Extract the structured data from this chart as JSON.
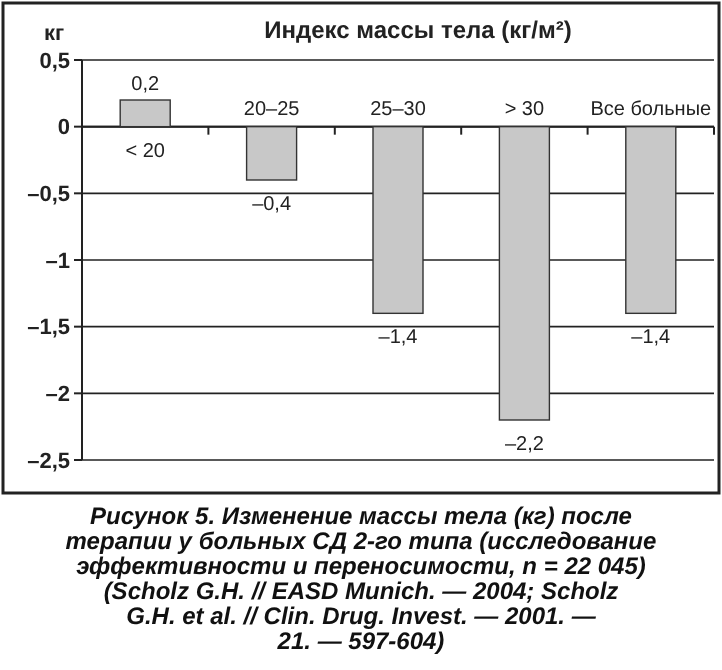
{
  "chart_data": {
    "type": "bar",
    "title": "Индекс массы тела (кг/м²)",
    "ylabel": "кг",
    "categories": [
      "< 20",
      "20–25",
      "25–30",
      "> 30",
      "Все больные"
    ],
    "values": [
      0.2,
      -0.4,
      -1.4,
      -2.2,
      -1.4
    ],
    "value_labels": [
      "0,2",
      "–0,4",
      "–1,4",
      "–2,2",
      "–1,4"
    ],
    "color": "#c8c8c8",
    "ylim": [
      -2.5,
      0.5
    ],
    "yticks": [
      {
        "value": 0.5,
        "label": "0,5"
      },
      0,
      {
        "value": -0.5,
        "label": "–0,5"
      },
      {
        "value": -1,
        "label": "–1"
      },
      {
        "value": -1.5,
        "label": "–1,5"
      },
      {
        "value": -2,
        "label": "–2"
      },
      {
        "value": -2.5,
        "label": "–2,5"
      }
    ],
    "grid": "y",
    "annotations": [
      "Рисунок 5. Изменение массы тела (кг) после терапии у больных СД 2-го типа (исследование эффективности и переносимости, n = 22 045) (Scholz G.H. // EASD Munich. — 2004; Scholz G.H. et al. // Clin. Drug. Invest. — 2001. — 21. — 597-604)"
    ]
  }
}
